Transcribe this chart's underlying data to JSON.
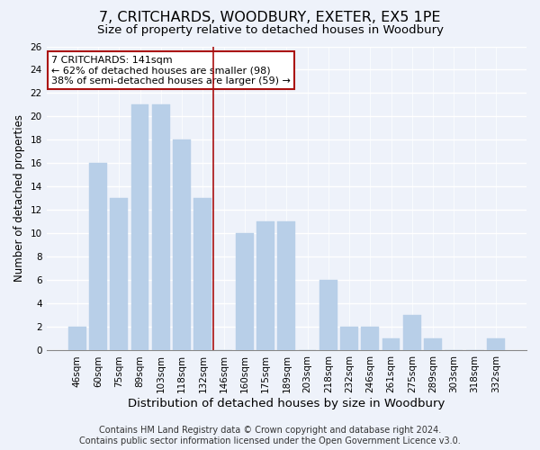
{
  "title": "7, CRITCHARDS, WOODBURY, EXETER, EX5 1PE",
  "subtitle": "Size of property relative to detached houses in Woodbury",
  "xlabel": "Distribution of detached houses by size in Woodbury",
  "ylabel": "Number of detached properties",
  "categories": [
    "46sqm",
    "60sqm",
    "75sqm",
    "89sqm",
    "103sqm",
    "118sqm",
    "132sqm",
    "146sqm",
    "160sqm",
    "175sqm",
    "189sqm",
    "203sqm",
    "218sqm",
    "232sqm",
    "246sqm",
    "261sqm",
    "275sqm",
    "289sqm",
    "303sqm",
    "318sqm",
    "332sqm"
  ],
  "values": [
    2,
    16,
    13,
    21,
    21,
    18,
    13,
    0,
    10,
    11,
    11,
    0,
    6,
    2,
    2,
    1,
    3,
    1,
    0,
    0,
    1
  ],
  "bar_color": "#b8cfe8",
  "bar_edge_color": "#b8cfe8",
  "vline_color": "#aa1111",
  "ylim": [
    0,
    26
  ],
  "yticks": [
    0,
    2,
    4,
    6,
    8,
    10,
    12,
    14,
    16,
    18,
    20,
    22,
    24,
    26
  ],
  "annotation_title": "7 CRITCHARDS: 141sqm",
  "annotation_line1": "← 62% of detached houses are smaller (98)",
  "annotation_line2": "38% of semi-detached houses are larger (59) →",
  "annotation_box_color": "#ffffff",
  "annotation_box_edge": "#aa1111",
  "footer1": "Contains HM Land Registry data © Crown copyright and database right 2024.",
  "footer2": "Contains public sector information licensed under the Open Government Licence v3.0.",
  "title_fontsize": 11.5,
  "subtitle_fontsize": 9.5,
  "xlabel_fontsize": 9.5,
  "ylabel_fontsize": 8.5,
  "tick_fontsize": 7.5,
  "ann_fontsize": 8.0,
  "footer_fontsize": 7.0,
  "background_color": "#eef2fa"
}
